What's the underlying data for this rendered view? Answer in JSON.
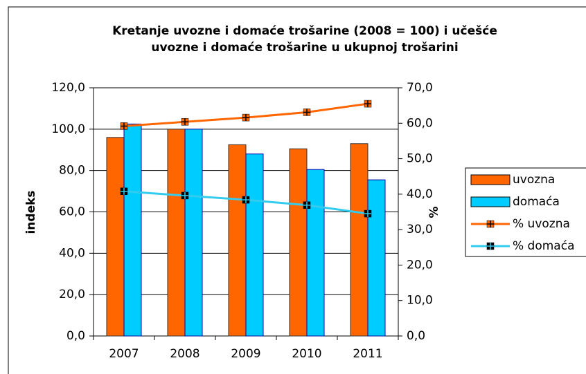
{
  "chart_data": {
    "type": "bar",
    "title": [
      "Kretanje uvozne i domaće trošarine (2008 = 100) i učešće",
      "uvozne i domaće trošarine u ukupnoj trošarini"
    ],
    "ylabel": "indeks",
    "y2label": "%",
    "categories": [
      "2007",
      "2008",
      "2009",
      "2010",
      "2011"
    ],
    "series": [
      {
        "name": "uvozna",
        "type": "bar",
        "color": "#ff6600",
        "values": [
          96,
          100,
          92.5,
          90.5,
          93
        ]
      },
      {
        "name": "domaća",
        "type": "bar",
        "color": "#00ccff",
        "values": [
          102.5,
          100,
          88,
          80.5,
          75.5
        ]
      },
      {
        "name": "% uvozna",
        "type": "line",
        "axis": "y2",
        "color": "#ff6600",
        "values": [
          59.2,
          60.4,
          61.6,
          63.1,
          65.5
        ]
      },
      {
        "name": "% domaća",
        "type": "line",
        "axis": "y2",
        "color": "#33ccee",
        "values": [
          40.8,
          39.6,
          38.4,
          36.9,
          34.5
        ]
      }
    ],
    "ylim": [
      0,
      120
    ],
    "yticks": [
      {
        "value": 0,
        "label": "0,0"
      },
      {
        "value": 20,
        "label": "20,0"
      },
      {
        "value": 40,
        "label": "40,0"
      },
      {
        "value": 60,
        "label": "60,0"
      },
      {
        "value": 80,
        "label": "80,0"
      },
      {
        "value": 100,
        "label": "100,0"
      },
      {
        "value": 120,
        "label": "120,0"
      }
    ],
    "y2lim": [
      0,
      70
    ],
    "y2ticks": [
      {
        "value": 0,
        "label": "0,0"
      },
      {
        "value": 10,
        "label": "10,0"
      },
      {
        "value": 20,
        "label": "20,0"
      },
      {
        "value": 30,
        "label": "30,0"
      },
      {
        "value": 40,
        "label": "40,0"
      },
      {
        "value": 50,
        "label": "50,0"
      },
      {
        "value": 60,
        "label": "60,0"
      },
      {
        "value": 70,
        "label": "70,0"
      }
    ],
    "grid": true,
    "legend": "right"
  }
}
